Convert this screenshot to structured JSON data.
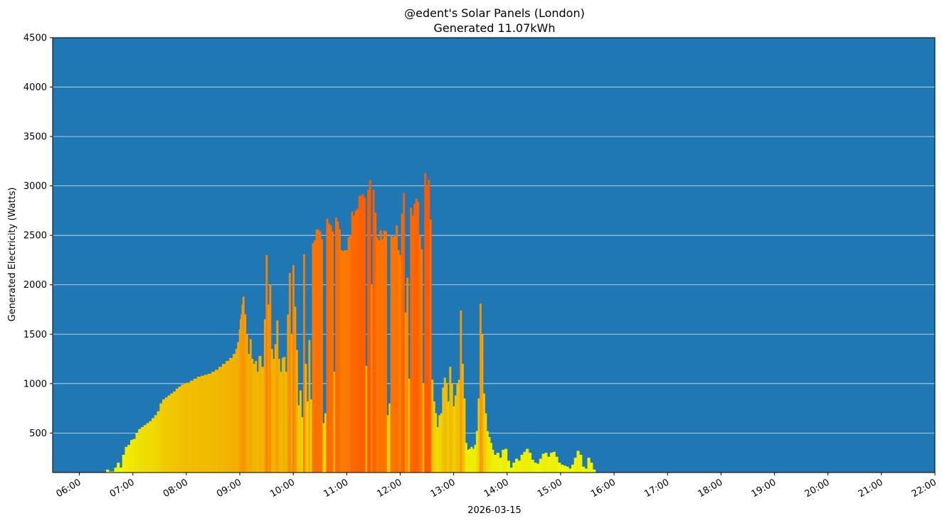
{
  "chart_data": {
    "type": "bar",
    "title": "@edent's Solar Panels (London)",
    "subtitle": "Generated 11.07kWh",
    "xlabel": "2026-03-15",
    "ylabel": "Generated Electricity (Watts)",
    "ylim": [
      100,
      4500
    ],
    "xlim": [
      "05:30",
      "22:00"
    ],
    "yticks": [
      "500",
      "1000",
      "1500",
      "2000",
      "2500",
      "3000",
      "3500",
      "4000",
      "4500"
    ],
    "xticks": [
      "06:00",
      "07:00",
      "08:00",
      "09:00",
      "10:00",
      "11:00",
      "12:00",
      "13:00",
      "14:00",
      "15:00",
      "16:00",
      "17:00",
      "18:00",
      "19:00",
      "20:00",
      "21:00",
      "22:00"
    ],
    "grid": "horizontal",
    "colors": {
      "background": "#1f77b4",
      "grid": "#d8e4ef",
      "low": "#eeff00",
      "mid": "#f0c000",
      "high": "#ff5a00"
    },
    "series": [
      {
        "points": [
          [
            "06:30",
            130
          ],
          [
            "06:33",
            110
          ],
          [
            "06:39",
            150
          ],
          [
            "06:42",
            200
          ],
          [
            "06:45",
            150
          ],
          [
            "06:48",
            280
          ],
          [
            "06:51",
            360
          ],
          [
            "06:54",
            380
          ],
          [
            "06:57",
            430
          ],
          [
            "07:00",
            440
          ],
          [
            "07:03",
            500
          ],
          [
            "07:06",
            540
          ],
          [
            "07:09",
            560
          ],
          [
            "07:12",
            580
          ],
          [
            "07:15",
            600
          ],
          [
            "07:18",
            620
          ],
          [
            "07:21",
            650
          ],
          [
            "07:24",
            680
          ],
          [
            "07:27",
            720
          ],
          [
            "07:30",
            800
          ],
          [
            "07:33",
            840
          ],
          [
            "07:36",
            860
          ],
          [
            "07:39",
            880
          ],
          [
            "07:42",
            900
          ],
          [
            "07:45",
            920
          ],
          [
            "07:48",
            950
          ],
          [
            "07:51",
            970
          ],
          [
            "07:54",
            990
          ],
          [
            "07:57",
            1000
          ],
          [
            "08:00",
            1010
          ],
          [
            "08:04",
            1030
          ],
          [
            "08:08",
            1050
          ],
          [
            "08:12",
            1070
          ],
          [
            "08:16",
            1080
          ],
          [
            "08:20",
            1090
          ],
          [
            "08:24",
            1100
          ],
          [
            "08:28",
            1120
          ],
          [
            "08:32",
            1140
          ],
          [
            "08:36",
            1170
          ],
          [
            "08:40",
            1200
          ],
          [
            "08:44",
            1230
          ],
          [
            "08:48",
            1260
          ],
          [
            "08:52",
            1300
          ],
          [
            "08:55",
            1350
          ],
          [
            "08:57",
            1420
          ],
          [
            "08:59",
            1550
          ],
          [
            "09:00",
            1650
          ],
          [
            "09:01",
            1700
          ],
          [
            "09:02",
            1800
          ],
          [
            "09:03",
            1880
          ],
          [
            "09:05",
            1700
          ],
          [
            "09:07",
            1500
          ],
          [
            "09:09",
            1300
          ],
          [
            "09:11",
            1450
          ],
          [
            "09:13",
            1250
          ],
          [
            "09:15",
            1200
          ],
          [
            "09:17",
            1230
          ],
          [
            "09:19",
            1120
          ],
          [
            "09:21",
            1280
          ],
          [
            "09:24",
            1170
          ],
          [
            "09:27",
            1650
          ],
          [
            "09:29",
            2300
          ],
          [
            "09:31",
            1800
          ],
          [
            "09:33",
            2000
          ],
          [
            "09:35",
            1350
          ],
          [
            "09:37",
            1250
          ],
          [
            "09:39",
            1400
          ],
          [
            "09:41",
            1640
          ],
          [
            "09:43",
            1250
          ],
          [
            "09:45",
            1120
          ],
          [
            "09:47",
            1260
          ],
          [
            "09:49",
            1270
          ],
          [
            "09:51",
            1120
          ],
          [
            "09:53",
            1700
          ],
          [
            "09:55",
            2120
          ],
          [
            "09:57",
            1500
          ],
          [
            "09:59",
            2200
          ],
          [
            "10:01",
            1780
          ],
          [
            "10:03",
            1340
          ],
          [
            "10:05",
            780
          ],
          [
            "10:07",
            930
          ],
          [
            "10:09",
            660
          ],
          [
            "10:11",
            2310
          ],
          [
            "10:13",
            1200
          ],
          [
            "10:15",
            820
          ],
          [
            "10:17",
            1440
          ],
          [
            "10:19",
            840
          ],
          [
            "10:21",
            2420
          ],
          [
            "10:23",
            2450
          ],
          [
            "10:25",
            2560
          ],
          [
            "10:27",
            2560
          ],
          [
            "10:29",
            2540
          ],
          [
            "10:31",
            2460
          ],
          [
            "10:33",
            600
          ],
          [
            "10:35",
            700
          ],
          [
            "10:37",
            2670
          ],
          [
            "10:39",
            2620
          ],
          [
            "10:41",
            2600
          ],
          [
            "10:43",
            2540
          ],
          [
            "10:45",
            1120
          ],
          [
            "10:47",
            2680
          ],
          [
            "10:49",
            2640
          ],
          [
            "10:51",
            2560
          ],
          [
            "10:53",
            2350
          ],
          [
            "10:55",
            2340
          ],
          [
            "10:57",
            2350
          ],
          [
            "10:59",
            2350
          ],
          [
            "11:01",
            2480
          ],
          [
            "11:03",
            2500
          ],
          [
            "11:05",
            2740
          ],
          [
            "11:07",
            2700
          ],
          [
            "11:09",
            2750
          ],
          [
            "11:11",
            2770
          ],
          [
            "11:13",
            2900
          ],
          [
            "11:15",
            2900
          ],
          [
            "11:17",
            2920
          ],
          [
            "11:19",
            2880
          ],
          [
            "11:21",
            1180
          ],
          [
            "11:23",
            2960
          ],
          [
            "11:25",
            3060
          ],
          [
            "11:27",
            2000
          ],
          [
            "11:29",
            2960
          ],
          [
            "11:31",
            2730
          ],
          [
            "11:33",
            2480
          ],
          [
            "11:35",
            2450
          ],
          [
            "11:37",
            2550
          ],
          [
            "11:39",
            2460
          ],
          [
            "11:41",
            2550
          ],
          [
            "11:43",
            2540
          ],
          [
            "11:45",
            680
          ],
          [
            "11:47",
            800
          ],
          [
            "11:49",
            2500
          ],
          [
            "11:51",
            2480
          ],
          [
            "11:53",
            2500
          ],
          [
            "11:55",
            2600
          ],
          [
            "11:57",
            2350
          ],
          [
            "11:59",
            2300
          ],
          [
            "12:01",
            2720
          ],
          [
            "12:03",
            2930
          ],
          [
            "12:05",
            1720
          ],
          [
            "12:07",
            2070
          ],
          [
            "12:09",
            1050
          ],
          [
            "12:11",
            2780
          ],
          [
            "12:13",
            2700
          ],
          [
            "12:15",
            2820
          ],
          [
            "12:17",
            2870
          ],
          [
            "12:19",
            2840
          ],
          [
            "12:21",
            2500
          ],
          [
            "12:23",
            2360
          ],
          [
            "12:25",
            1000
          ],
          [
            "12:27",
            3130
          ],
          [
            "12:29",
            3000
          ],
          [
            "12:31",
            3060
          ],
          [
            "12:33",
            2660
          ],
          [
            "12:35",
            1040
          ],
          [
            "12:37",
            820
          ],
          [
            "12:39",
            700
          ],
          [
            "12:41",
            560
          ],
          [
            "12:43",
            680
          ],
          [
            "12:45",
            700
          ],
          [
            "12:47",
            960
          ],
          [
            "12:49",
            1060
          ],
          [
            "12:51",
            1000
          ],
          [
            "12:53",
            820
          ],
          [
            "12:55",
            1170
          ],
          [
            "12:57",
            1000
          ],
          [
            "12:59",
            770
          ],
          [
            "13:01",
            880
          ],
          [
            "13:03",
            1000
          ],
          [
            "13:05",
            1040
          ],
          [
            "13:07",
            1740
          ],
          [
            "13:09",
            1200
          ],
          [
            "13:11",
            850
          ],
          [
            "13:13",
            400
          ],
          [
            "13:15",
            330
          ],
          [
            "13:17",
            340
          ],
          [
            "13:19",
            360
          ],
          [
            "13:21",
            340
          ],
          [
            "13:23",
            380
          ],
          [
            "13:25",
            520
          ],
          [
            "13:27",
            850
          ],
          [
            "13:29",
            1810
          ],
          [
            "13:31",
            1500
          ],
          [
            "13:33",
            900
          ],
          [
            "13:35",
            700
          ],
          [
            "13:37",
            520
          ],
          [
            "13:39",
            460
          ],
          [
            "13:41",
            400
          ],
          [
            "13:43",
            330
          ],
          [
            "13:45",
            280
          ],
          [
            "13:48",
            300
          ],
          [
            "13:51",
            250
          ],
          [
            "13:54",
            330
          ],
          [
            "13:57",
            340
          ],
          [
            "14:00",
            220
          ],
          [
            "14:03",
            150
          ],
          [
            "14:06",
            200
          ],
          [
            "14:09",
            240
          ],
          [
            "14:12",
            220
          ],
          [
            "14:15",
            280
          ],
          [
            "14:18",
            310
          ],
          [
            "14:21",
            340
          ],
          [
            "14:24",
            300
          ],
          [
            "14:27",
            230
          ],
          [
            "14:30",
            200
          ],
          [
            "14:33",
            190
          ],
          [
            "14:36",
            240
          ],
          [
            "14:39",
            290
          ],
          [
            "14:42",
            300
          ],
          [
            "14:45",
            260
          ],
          [
            "14:48",
            300
          ],
          [
            "14:51",
            310
          ],
          [
            "14:54",
            260
          ],
          [
            "14:57",
            200
          ],
          [
            "15:00",
            180
          ],
          [
            "15:03",
            170
          ],
          [
            "15:06",
            160
          ],
          [
            "15:09",
            140
          ],
          [
            "15:12",
            180
          ],
          [
            "15:15",
            250
          ],
          [
            "15:18",
            320
          ],
          [
            "15:21",
            280
          ],
          [
            "15:24",
            160
          ],
          [
            "15:27",
            140
          ],
          [
            "15:30",
            250
          ],
          [
            "15:33",
            200
          ],
          [
            "15:36",
            130
          ]
        ]
      }
    ]
  }
}
